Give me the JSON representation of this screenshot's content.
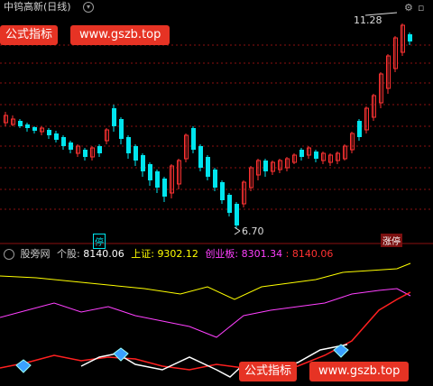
{
  "header": {
    "title": "中钨高新(日线)",
    "dropdown_glyph": "▾",
    "gear_glyph": "⚙",
    "close_glyph": "▫"
  },
  "watermark_top": {
    "left": "公式指标",
    "right": "www.gszb.top"
  },
  "watermark_bottom": {
    "left": "公式指标",
    "right": "www.gszb.top"
  },
  "annotations": {
    "high_label": "11.28",
    "low_label": "6.70",
    "marker_left": "停",
    "marker_right": "涨停"
  },
  "indicator_header": {
    "name": "股旁网",
    "stock_label": "个股:",
    "stock_value": "8140.06",
    "sh_label": "上证:",
    "sh_value": "9302.12",
    "cy_label": "创业板:",
    "cy_value": "8301.34",
    "extra_value": ": 8140.06"
  },
  "colors": {
    "up": "#ff3232",
    "down": "#00e5ee",
    "yellow": "#ffff00",
    "magenta": "#ff40ff",
    "white": "#ffffff",
    "red": "#ff2020"
  }
}
